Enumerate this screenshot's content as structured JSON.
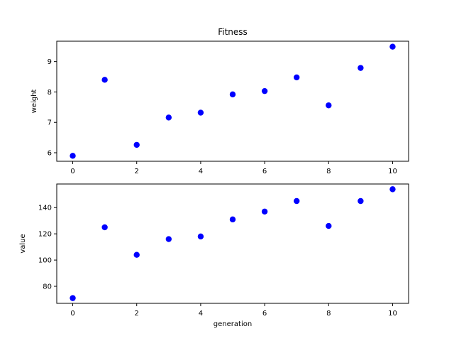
{
  "chart_data": [
    {
      "type": "scatter",
      "title": "Fitness",
      "xlabel": "",
      "ylabel": "weight",
      "x": [
        0,
        1,
        2,
        3,
        4,
        5,
        6,
        7,
        8,
        9,
        10
      ],
      "y": [
        5.9,
        8.4,
        6.26,
        7.16,
        7.32,
        7.92,
        8.03,
        8.48,
        7.56,
        8.79,
        9.49
      ],
      "xlim": [
        -0.5,
        10.5
      ],
      "ylim": [
        5.72,
        9.67
      ],
      "xticks": [
        0,
        2,
        4,
        6,
        8,
        10
      ],
      "yticks": [
        6,
        7,
        8,
        9
      ],
      "marker_color": "#0000ff",
      "grid": false
    },
    {
      "type": "scatter",
      "title": "",
      "xlabel": "generation",
      "ylabel": "value",
      "x": [
        0,
        1,
        2,
        3,
        4,
        5,
        6,
        7,
        8,
        9,
        10
      ],
      "y": [
        71,
        125,
        104,
        116,
        118,
        131,
        137,
        145,
        126,
        145,
        154
      ],
      "xlim": [
        -0.5,
        10.5
      ],
      "ylim": [
        67,
        158
      ],
      "xticks": [
        0,
        2,
        4,
        6,
        8,
        10
      ],
      "yticks": [
        80,
        100,
        120,
        140
      ],
      "marker_color": "#0000ff",
      "grid": false
    }
  ]
}
